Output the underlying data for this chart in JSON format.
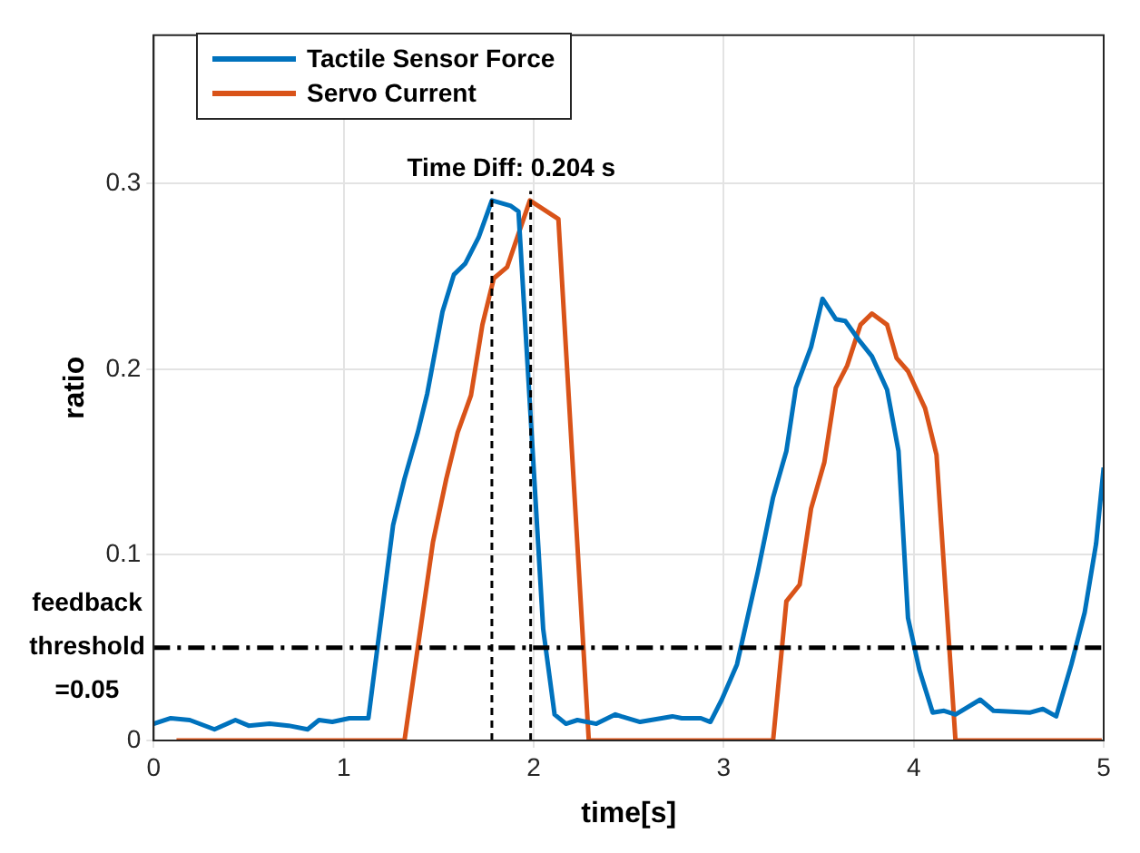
{
  "chart_data": {
    "type": "line",
    "xlabel": "time[s]",
    "ylabel": "ratio",
    "xlim": [
      0,
      5
    ],
    "xticks": [
      0,
      1,
      2,
      3,
      4,
      5
    ],
    "ylim": [
      0,
      0.38
    ],
    "yticks": [
      0,
      0.1,
      0.2,
      0.3
    ],
    "grid": true,
    "legend": "top left",
    "marker": "none",
    "line_style": "solid",
    "series": [
      {
        "name": "Tactile Sensor Force",
        "color": "#0072bd",
        "x": [
          0,
          0.09,
          0.19,
          0.32,
          0.43,
          0.5,
          0.61,
          0.71,
          0.81,
          0.87,
          0.94,
          1.03,
          1.13,
          1.26,
          1.32,
          1.39,
          1.44,
          1.52,
          1.58,
          1.64,
          1.71,
          1.78,
          1.88,
          1.92,
          2.05,
          2.11,
          2.17,
          2.23,
          2.33,
          2.43,
          2.46,
          2.56,
          2.73,
          2.78,
          2.88,
          2.93,
          2.99,
          3.07,
          3.18,
          3.26,
          3.33,
          3.38,
          3.46,
          3.52,
          3.59,
          3.64,
          3.71,
          3.78,
          3.86,
          3.92,
          3.97,
          4.03,
          4.1,
          4.16,
          4.22,
          4.35,
          4.42,
          4.61,
          4.68,
          4.75,
          4.83,
          4.9,
          4.96,
          5.0
        ],
        "values": [
          0.009,
          0.012,
          0.011,
          0.006,
          0.011,
          0.008,
          0.009,
          0.008,
          0.006,
          0.011,
          0.01,
          0.012,
          0.012,
          0.116,
          0.141,
          0.166,
          0.187,
          0.231,
          0.251,
          0.257,
          0.271,
          0.291,
          0.288,
          0.285,
          0.06,
          0.014,
          0.009,
          0.011,
          0.009,
          0.014,
          0.013,
          0.01,
          0.013,
          0.012,
          0.012,
          0.01,
          0.022,
          0.041,
          0.091,
          0.131,
          0.156,
          0.19,
          0.212,
          0.238,
          0.227,
          0.226,
          0.216,
          0.207,
          0.189,
          0.156,
          0.066,
          0.038,
          0.015,
          0.016,
          0.014,
          0.022,
          0.016,
          0.015,
          0.017,
          0.013,
          0.041,
          0.069,
          0.106,
          0.147
        ]
      },
      {
        "name": "Servo Current",
        "color": "#d95319",
        "x": [
          0.12,
          1.32,
          1.47,
          1.54,
          1.6,
          1.67,
          1.73,
          1.79,
          1.86,
          1.98,
          2.13,
          2.29,
          3.26,
          3.33,
          3.4,
          3.46,
          3.53,
          3.59,
          3.65,
          3.72,
          3.78,
          3.86,
          3.91,
          3.97,
          4.06,
          4.12,
          4.22,
          4.99
        ],
        "values": [
          0,
          0,
          0.107,
          0.141,
          0.166,
          0.186,
          0.224,
          0.249,
          0.255,
          0.291,
          0.281,
          0,
          0,
          0.075,
          0.084,
          0.125,
          0.15,
          0.19,
          0.202,
          0.224,
          0.23,
          0.224,
          0.206,
          0.199,
          0.179,
          0.154,
          0,
          0
        ]
      }
    ],
    "ref_lines": [
      {
        "axis": "y",
        "value": 0.05,
        "label": "feedback threshold =0.05",
        "color": "#000000",
        "line_style": "dashed"
      },
      {
        "axis": "x",
        "value": 1.78,
        "color": "#000000",
        "line_style": "dotted"
      },
      {
        "axis": "x",
        "value": 1.984,
        "color": "#000000",
        "line_style": "dotted"
      }
    ],
    "annotations": [
      "Time Diff: 0.204 s"
    ]
  }
}
